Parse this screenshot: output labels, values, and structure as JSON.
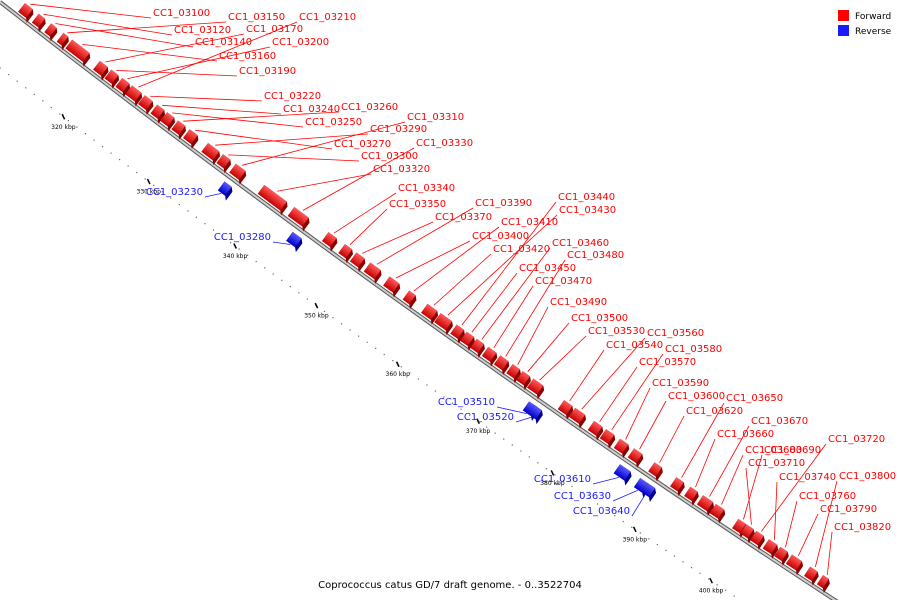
{
  "caption": "Coprococcus catus GD/7 draft genome. - 0..3522704",
  "colors": {
    "forward": "#ff0000",
    "reverse": "#1a1aff",
    "backbone": "#777777"
  },
  "legend": {
    "forward_label": "Forward",
    "reverse_label": "Reverse"
  },
  "scale_ticks": [
    "320 kbp",
    "330 kbp",
    "340 kbp",
    "350 kbp",
    "360 kbp",
    "370 kbp",
    "380 kbp",
    "390 kbp",
    "400 kbp"
  ],
  "forward_genes": [
    "CC1_03100",
    "CC1_03120",
    "CC1_03140",
    "CC1_03150",
    "CC1_03160",
    "CC1_03170",
    "CC1_03190",
    "CC1_03200",
    "CC1_03210",
    "CC1_03220",
    "CC1_03240",
    "CC1_03250",
    "CC1_03260",
    "CC1_03270",
    "CC1_03290",
    "CC1_03300",
    "CC1_03310",
    "CC1_03320",
    "CC1_03330",
    "CC1_03340",
    "CC1_03350",
    "CC1_03370",
    "CC1_03390",
    "CC1_03400",
    "CC1_03410",
    "CC1_03420",
    "CC1_03430",
    "CC1_03440",
    "CC1_03450",
    "CC1_03460",
    "CC1_03470",
    "CC1_03480",
    "CC1_03490",
    "CC1_03500",
    "CC1_03530",
    "CC1_03540",
    "CC1_03560",
    "CC1_03570",
    "CC1_03580",
    "CC1_03590",
    "CC1_03600",
    "CC1_03620",
    "CC1_03650",
    "CC1_03660",
    "CC1_03670",
    "CC1_03680",
    "CC1_03690",
    "CC1_03710",
    "CC1_03720",
    "CC1_03740",
    "CC1_03760",
    "CC1_03790",
    "CC1_03800",
    "CC1_03820"
  ],
  "reverse_genes": [
    "CC1_03230",
    "CC1_03280",
    "CC1_03510",
    "CC1_03520",
    "CC1_03610",
    "CC1_03630",
    "CC1_03640"
  ]
}
